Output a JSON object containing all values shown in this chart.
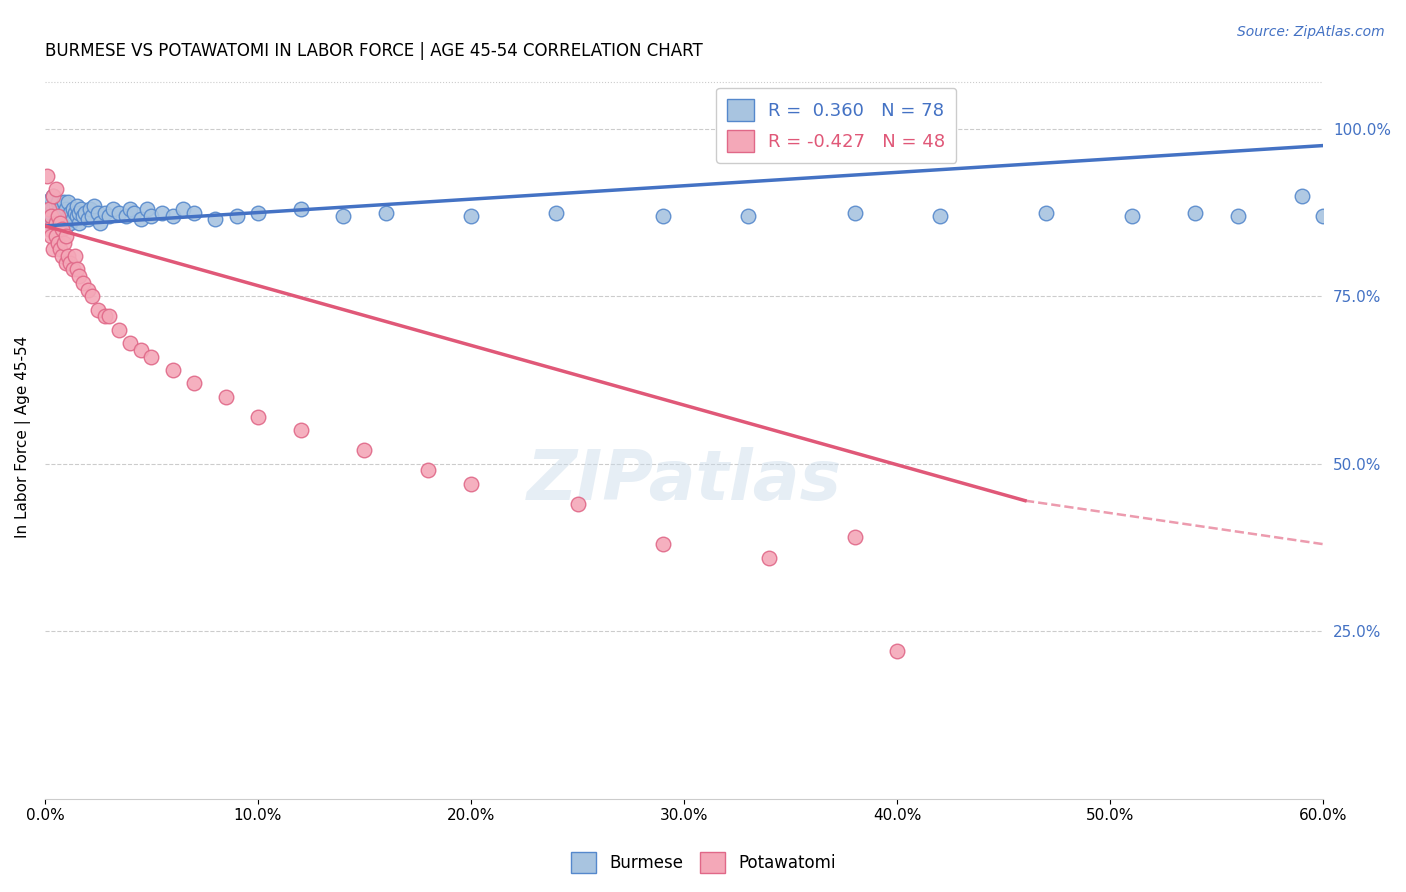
{
  "title": "BURMESE VS POTAWATOMI IN LABOR FORCE | AGE 45-54 CORRELATION CHART",
  "source": "Source: ZipAtlas.com",
  "ylabel": "In Labor Force | Age 45-54",
  "xlim": [
    0.0,
    0.6
  ],
  "ylim": [
    0.0,
    1.08
  ],
  "xtick_labels": [
    "0.0%",
    "10.0%",
    "20.0%",
    "30.0%",
    "40.0%",
    "50.0%",
    "60.0%"
  ],
  "xtick_values": [
    0.0,
    0.1,
    0.2,
    0.3,
    0.4,
    0.5,
    0.6
  ],
  "right_ytick_labels": [
    "25.0%",
    "50.0%",
    "75.0%",
    "100.0%"
  ],
  "right_ytick_values": [
    0.25,
    0.5,
    0.75,
    1.0
  ],
  "grid_ytick_values": [
    0.25,
    0.5,
    0.75,
    1.0
  ],
  "burmese_color": "#a8c4e0",
  "potawatomi_color": "#f4a8b8",
  "burmese_edge_color": "#5588cc",
  "potawatomi_edge_color": "#e06888",
  "burmese_line_color": "#4472c4",
  "potawatomi_line_color": "#e05878",
  "burmese_R": 0.36,
  "burmese_N": 78,
  "potawatomi_R": -0.427,
  "potawatomi_N": 48,
  "watermark": "ZIPatlas",
  "legend_label_burmese": "Burmese",
  "legend_label_potawatomi": "Potawatomi",
  "burmese_trend_x0": 0.0,
  "burmese_trend_y0": 0.855,
  "burmese_trend_x1": 0.6,
  "burmese_trend_y1": 0.975,
  "potawatomi_trend_x0": 0.0,
  "potawatomi_trend_y0": 0.855,
  "potawatomi_trend_x1_solid": 0.46,
  "potawatomi_trend_y1_solid": 0.445,
  "potawatomi_trend_x1_dash": 0.6,
  "potawatomi_trend_y1_dash": 0.38,
  "burmese_scatter_x": [
    0.001,
    0.002,
    0.002,
    0.003,
    0.003,
    0.003,
    0.004,
    0.004,
    0.004,
    0.005,
    0.005,
    0.005,
    0.006,
    0.006,
    0.006,
    0.007,
    0.007,
    0.007,
    0.008,
    0.008,
    0.008,
    0.009,
    0.009,
    0.01,
    0.01,
    0.01,
    0.011,
    0.011,
    0.012,
    0.012,
    0.013,
    0.013,
    0.014,
    0.015,
    0.015,
    0.016,
    0.016,
    0.017,
    0.018,
    0.019,
    0.02,
    0.021,
    0.022,
    0.023,
    0.025,
    0.026,
    0.028,
    0.03,
    0.032,
    0.035,
    0.038,
    0.04,
    0.042,
    0.045,
    0.048,
    0.05,
    0.055,
    0.06,
    0.065,
    0.07,
    0.08,
    0.09,
    0.1,
    0.12,
    0.14,
    0.16,
    0.2,
    0.24,
    0.29,
    0.33,
    0.38,
    0.42,
    0.47,
    0.51,
    0.54,
    0.56,
    0.59,
    0.6
  ],
  "burmese_scatter_y": [
    0.88,
    0.87,
    0.89,
    0.86,
    0.875,
    0.895,
    0.855,
    0.88,
    0.9,
    0.87,
    0.885,
    0.86,
    0.875,
    0.89,
    0.865,
    0.88,
    0.855,
    0.875,
    0.87,
    0.885,
    0.86,
    0.875,
    0.89,
    0.865,
    0.88,
    0.855,
    0.87,
    0.89,
    0.875,
    0.86,
    0.88,
    0.865,
    0.875,
    0.87,
    0.885,
    0.86,
    0.875,
    0.88,
    0.87,
    0.875,
    0.865,
    0.88,
    0.87,
    0.885,
    0.875,
    0.86,
    0.875,
    0.87,
    0.88,
    0.875,
    0.87,
    0.88,
    0.875,
    0.865,
    0.88,
    0.87,
    0.875,
    0.87,
    0.88,
    0.875,
    0.865,
    0.87,
    0.875,
    0.88,
    0.87,
    0.875,
    0.87,
    0.875,
    0.87,
    0.87,
    0.875,
    0.87,
    0.875,
    0.87,
    0.875,
    0.87,
    0.9,
    0.87
  ],
  "potawatomi_scatter_x": [
    0.001,
    0.002,
    0.002,
    0.003,
    0.003,
    0.004,
    0.004,
    0.005,
    0.005,
    0.005,
    0.006,
    0.006,
    0.007,
    0.007,
    0.008,
    0.008,
    0.009,
    0.01,
    0.01,
    0.011,
    0.012,
    0.013,
    0.014,
    0.015,
    0.016,
    0.018,
    0.02,
    0.022,
    0.025,
    0.028,
    0.03,
    0.035,
    0.04,
    0.045,
    0.05,
    0.06,
    0.07,
    0.085,
    0.1,
    0.12,
    0.15,
    0.18,
    0.2,
    0.25,
    0.29,
    0.34,
    0.38,
    0.4
  ],
  "potawatomi_scatter_y": [
    0.93,
    0.85,
    0.88,
    0.87,
    0.84,
    0.9,
    0.82,
    0.91,
    0.86,
    0.84,
    0.87,
    0.83,
    0.82,
    0.86,
    0.85,
    0.81,
    0.83,
    0.8,
    0.84,
    0.81,
    0.8,
    0.79,
    0.81,
    0.79,
    0.78,
    0.77,
    0.76,
    0.75,
    0.73,
    0.72,
    0.72,
    0.7,
    0.68,
    0.67,
    0.66,
    0.64,
    0.62,
    0.6,
    0.57,
    0.55,
    0.52,
    0.49,
    0.47,
    0.44,
    0.38,
    0.36,
    0.39,
    0.22
  ]
}
